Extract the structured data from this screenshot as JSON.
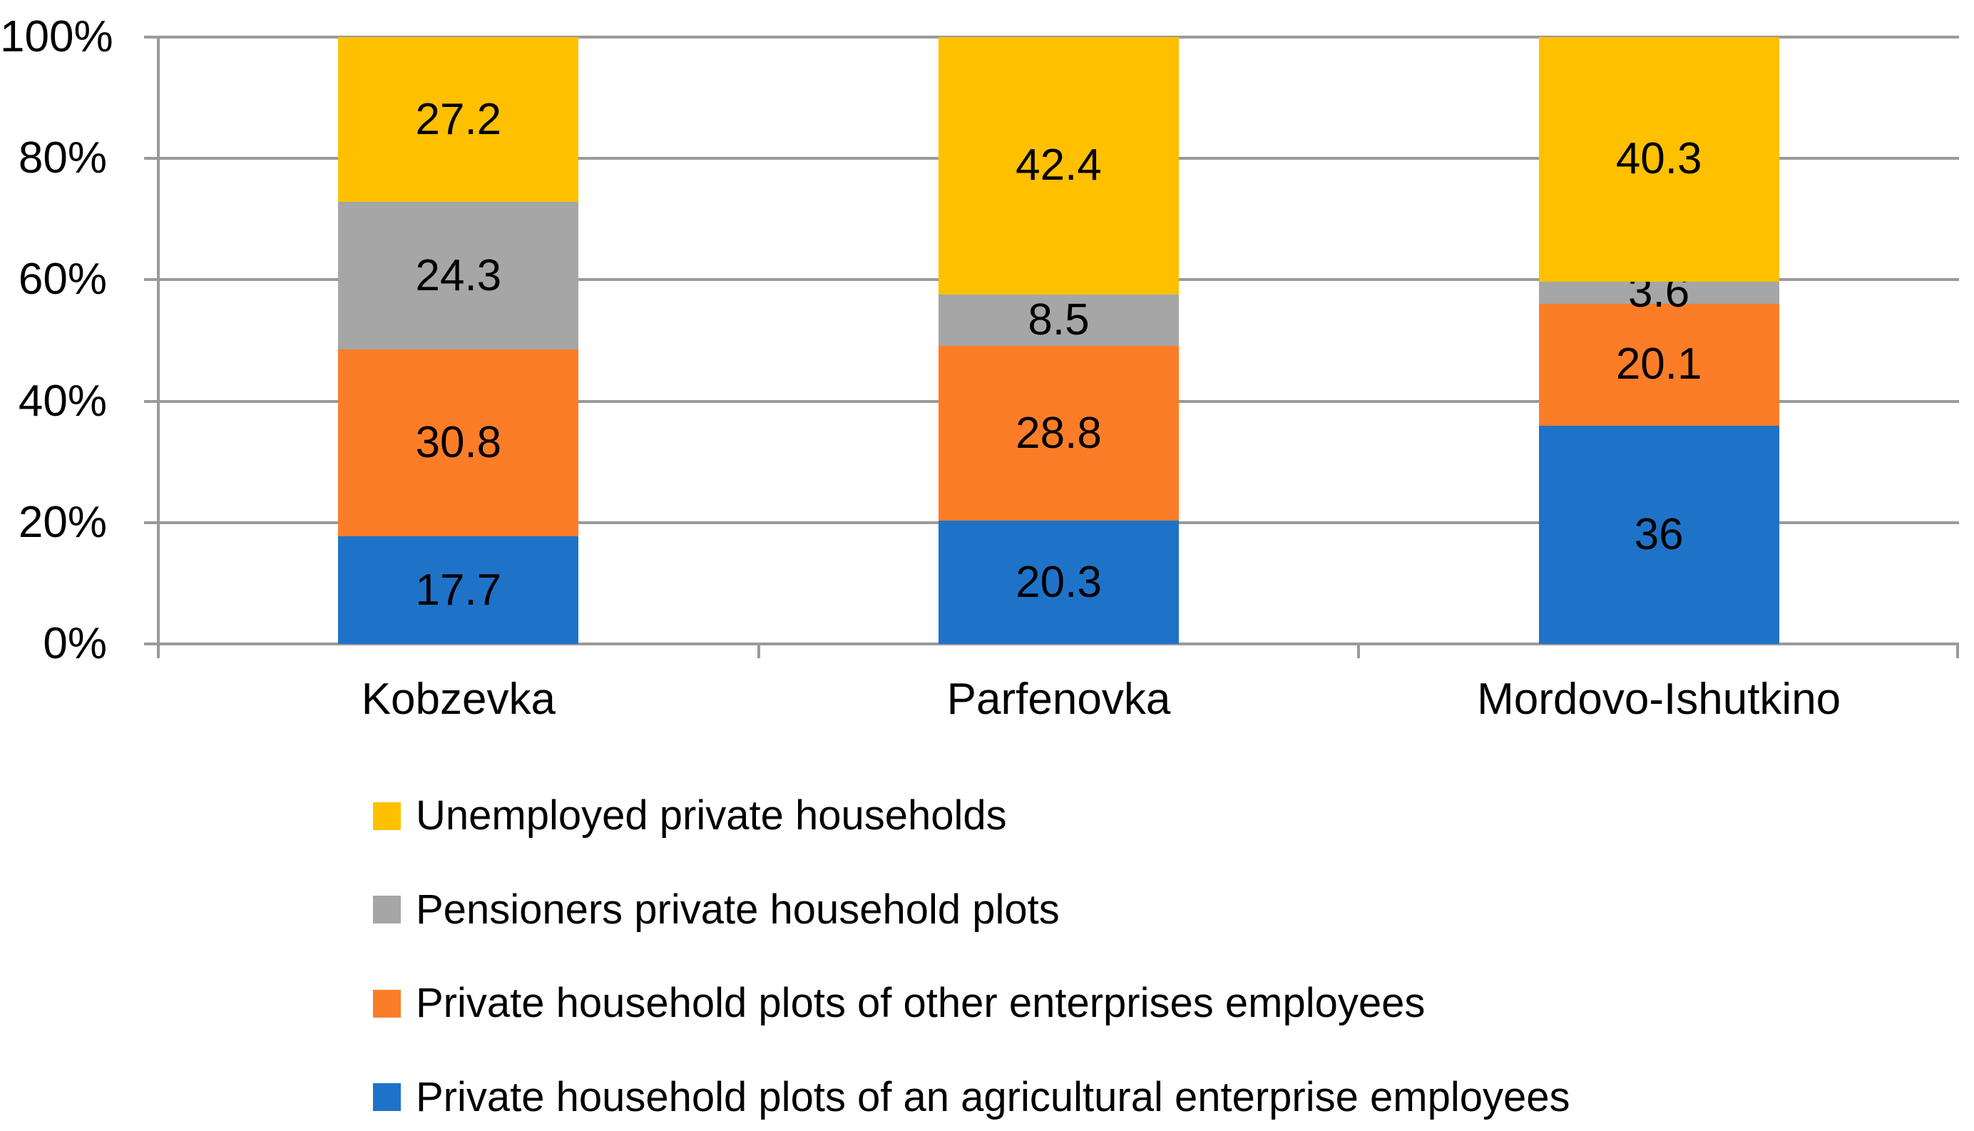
{
  "chart_data": {
    "type": "bar",
    "variant": "stacked-100-column",
    "title": "",
    "xlabel": "",
    "ylabel": "",
    "categories": [
      "Kobzevka",
      "Parfenovka",
      "Mordovo-Ishutkino"
    ],
    "series": [
      {
        "name": "Private household plots of an agricultural enterprise employees",
        "color": "#1E73C8",
        "values": [
          17.7,
          20.3,
          36
        ],
        "labels": [
          "17.7",
          "20.3",
          "36"
        ]
      },
      {
        "name": "Private household plots of other enterprises employees",
        "color": "#FC7D28",
        "values": [
          30.8,
          28.8,
          20.1
        ],
        "labels": [
          "30.8",
          "28.8",
          "20.1"
        ]
      },
      {
        "name": "Pensioners private household plots",
        "color": "#A6A6A6",
        "values": [
          24.3,
          8.5,
          3.6
        ],
        "labels": [
          "24.3",
          "8.5",
          "3.6"
        ]
      },
      {
        "name": "Unemployed private households",
        "color": "#FFC000",
        "values": [
          27.2,
          42.4,
          40.3
        ],
        "labels": [
          "27.2",
          "42.4",
          "40.3"
        ]
      }
    ],
    "y_axis": {
      "ticks": [
        "0%",
        "20%",
        "40%",
        "60%",
        "80%",
        "100%"
      ],
      "tick_percents": [
        0,
        20,
        40,
        60,
        80,
        100
      ],
      "min": 0,
      "max": 100
    },
    "legend": {
      "position": "bottom-left",
      "order": "reverse-of-stack",
      "entries": [
        "Unemployed private households",
        "Pensioners private household plots",
        "Private household plots of other enterprises employees",
        "Private household plots of an agricultural enterprise employees"
      ]
    },
    "grid": true,
    "data_labels": true,
    "colors": {
      "grid": "#9A9A9A",
      "axis": "#9A9A9A",
      "label": "#000000",
      "background": "#FFFFFF"
    }
  }
}
